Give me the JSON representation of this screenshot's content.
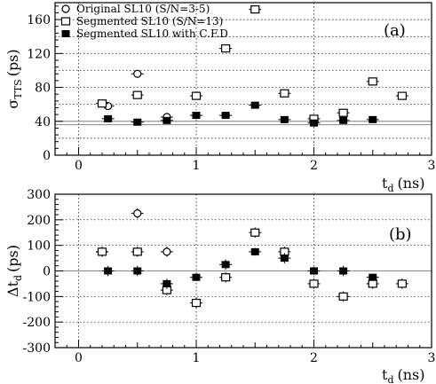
{
  "chart_data": [
    {
      "type": "scatter",
      "panel_label": "(a)",
      "ylabel_main": "σ",
      "ylabel_sub": "TTS",
      "ylabel_unit": "(ps)",
      "xlabel_main": "t",
      "xlabel_sub": "d",
      "xlabel_unit": "(ns)",
      "xlim": [
        -0.2,
        3.0
      ],
      "ylim": [
        0,
        180
      ],
      "xticks": [
        "0",
        "1",
        "2",
        "3"
      ],
      "xtick_values": [
        0,
        1,
        2,
        3
      ],
      "yticks": [
        "0",
        "40",
        "80",
        "120",
        "160"
      ],
      "ytick_values": [
        0,
        40,
        80,
        120,
        160
      ],
      "minor_ygrid": [
        20,
        60,
        100,
        140
      ],
      "reference_lines": [
        36,
        40
      ],
      "grid": true,
      "legend": "top-left",
      "series": [
        {
          "name": "Original SL10  (S/N=3-5)",
          "marker": "circle",
          "x": [
            0.25,
            0.5,
            0.75
          ],
          "y": [
            58,
            96,
            45
          ],
          "yerr": [
            3,
            3,
            3
          ]
        },
        {
          "name": "Segmented SL10  (S/N=13)",
          "marker": "open-square",
          "x": [
            0.2,
            0.5,
            1.0,
            1.25,
            1.5,
            1.75,
            2.0,
            2.25,
            2.5,
            2.75
          ],
          "y": [
            61,
            71,
            70,
            126,
            172,
            73,
            43,
            50,
            87,
            70
          ],
          "yerr": [
            3,
            3,
            3,
            3,
            3,
            3,
            3,
            3,
            3,
            3
          ]
        },
        {
          "name": "Segmented SL10 with C.F.D",
          "marker": "filled-square",
          "x": [
            0.25,
            0.5,
            0.75,
            1.0,
            1.25,
            1.5,
            1.75,
            2.0,
            2.25,
            2.5
          ],
          "y": [
            43,
            39,
            41,
            47,
            47,
            59,
            42,
            38,
            41,
            42
          ],
          "yerr": [
            2,
            2,
            2,
            2,
            2,
            2,
            2,
            2,
            2,
            2
          ]
        }
      ]
    },
    {
      "type": "scatter",
      "panel_label": "(b)",
      "ylabel_main": "Δt",
      "ylabel_sub": "d",
      "ylabel_unit": "(ps)",
      "xlabel_main": "t",
      "xlabel_sub": "d",
      "xlabel_unit": "(ns)",
      "xlim": [
        -0.2,
        3.0
      ],
      "ylim": [
        -300,
        300
      ],
      "xticks": [
        "0",
        "1",
        "2",
        "3"
      ],
      "xtick_values": [
        0,
        1,
        2,
        3
      ],
      "yticks": [
        "-300",
        "-200",
        "-100",
        "0",
        "100",
        "200",
        "300"
      ],
      "ytick_values": [
        -300,
        -200,
        -100,
        0,
        100,
        200,
        300
      ],
      "reference_lines": [
        0
      ],
      "grid": true,
      "series": [
        {
          "name": "Original SL10  (S/N=3-5)",
          "marker": "circle",
          "x": [
            0.2,
            0.5,
            0.75
          ],
          "y": [
            75,
            225,
            75
          ],
          "yerr": [
            20,
            20,
            20
          ]
        },
        {
          "name": "Segmented SL10  (S/N=13)",
          "marker": "open-square",
          "x": [
            0.2,
            0.5,
            0.75,
            1.0,
            1.25,
            1.5,
            1.75,
            2.0,
            2.25,
            2.5,
            2.75
          ],
          "y": [
            75,
            75,
            -75,
            -125,
            -25,
            150,
            75,
            -50,
            -100,
            -50,
            -50
          ],
          "yerr": [
            20,
            20,
            20,
            20,
            20,
            20,
            20,
            20,
            20,
            20,
            20
          ]
        },
        {
          "name": "Segmented SL10 with C.F.D",
          "marker": "filled-square",
          "x": [
            0.25,
            0.5,
            0.75,
            1.0,
            1.25,
            1.5,
            1.75,
            2.0,
            2.25,
            2.5
          ],
          "y": [
            0,
            0,
            -50,
            -25,
            25,
            75,
            50,
            0,
            0,
            -25
          ],
          "yerr": [
            20,
            20,
            20,
            15,
            20,
            15,
            20,
            15,
            20,
            15
          ]
        }
      ]
    }
  ]
}
